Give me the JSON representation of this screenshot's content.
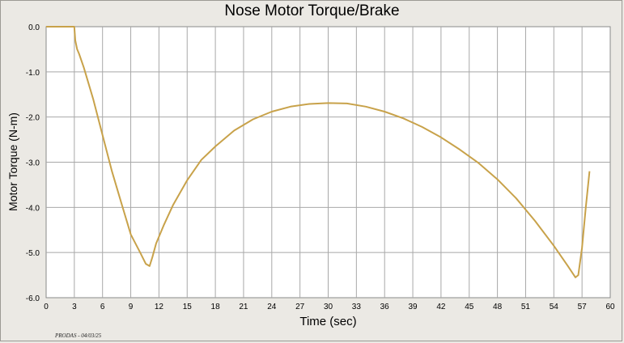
{
  "chart_data": {
    "type": "line",
    "title": "Nose Motor Torque/Brake",
    "xlabel": "Time (sec)",
    "ylabel": "Motor Torque (N-m)",
    "xlim": [
      0,
      60
    ],
    "ylim": [
      -6.0,
      0.0
    ],
    "x_ticks": [
      "0",
      "3",
      "6",
      "9",
      "12",
      "15",
      "18",
      "21",
      "24",
      "27",
      "30",
      "33",
      "36",
      "39",
      "42",
      "45",
      "48",
      "51",
      "54",
      "57",
      "60"
    ],
    "y_ticks": [
      "0.0",
      "-1.0",
      "-2.0",
      "-3.0",
      "-4.0",
      "-5.0",
      "-6.0"
    ],
    "grid": true,
    "series": [
      {
        "color": "#c8a24a",
        "x": [
          0,
          3.0,
          3.1,
          3.3,
          3.5,
          4.0,
          5.0,
          6.0,
          7.0,
          8.0,
          9.0,
          10.0,
          10.6,
          11.0,
          11.3,
          11.7,
          12.5,
          13.5,
          15.0,
          16.5,
          18.0,
          20.0,
          22.0,
          24.0,
          26.0,
          28.0,
          30.0,
          32.0,
          34.0,
          36.0,
          38.0,
          40.0,
          42.0,
          44.0,
          46.0,
          48.0,
          50.0,
          52.0,
          54.0,
          55.5,
          56.3,
          56.6,
          57.0,
          57.4,
          57.8
        ],
        "y": [
          0.0,
          0.0,
          -0.3,
          -0.5,
          -0.6,
          -0.9,
          -1.6,
          -2.4,
          -3.2,
          -3.9,
          -4.6,
          -5.0,
          -5.25,
          -5.3,
          -5.1,
          -4.8,
          -4.4,
          -3.95,
          -3.4,
          -2.95,
          -2.65,
          -2.3,
          -2.05,
          -1.88,
          -1.77,
          -1.71,
          -1.69,
          -1.7,
          -1.77,
          -1.88,
          -2.03,
          -2.22,
          -2.45,
          -2.72,
          -3.02,
          -3.38,
          -3.8,
          -4.3,
          -4.85,
          -5.3,
          -5.55,
          -5.5,
          -4.9,
          -4.0,
          -3.2
        ]
      }
    ]
  },
  "footer_note": "PRODAS - 04/03/25"
}
